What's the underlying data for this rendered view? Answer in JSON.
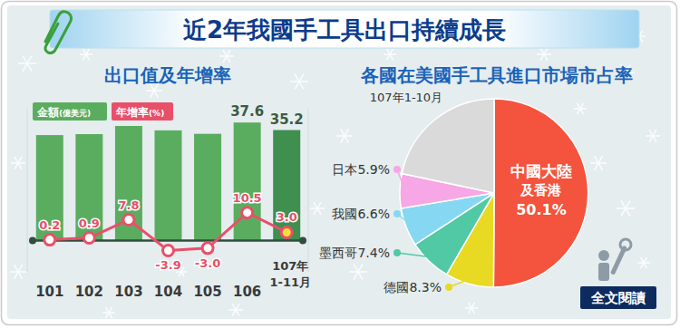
{
  "header": {
    "title": "近2年我國手工具出口持續成長"
  },
  "chart_data": [
    {
      "type": "bar",
      "title": "出口值及年增率",
      "categories": [
        "101",
        "102",
        "103",
        "104",
        "105",
        "106",
        "107年\n1-11月"
      ],
      "series": [
        {
          "name": "金額(億美元)",
          "type": "bar",
          "color": "#5aad5e",
          "colors": [
            "#5aad5e",
            "#5aad5e",
            "#5aad5e",
            "#5aad5e",
            "#5aad5e",
            "#5aad5e",
            "#3f8f4f"
          ],
          "values": [
            33.6,
            33.9,
            36.5,
            35.1,
            34.0,
            37.6,
            35.2
          ],
          "value_labels": [
            null,
            null,
            null,
            null,
            null,
            "37.6",
            "35.2"
          ]
        },
        {
          "name": "年增率(%)",
          "type": "line",
          "axis": "y2",
          "color": "#e8506a",
          "marker": "circle",
          "colors": [
            "#ffffff",
            "#ffffff",
            "#ffffff",
            "#ffffff",
            "#ffffff",
            "#ffffff",
            "#f5e03a"
          ],
          "values": [
            0.2,
            0.9,
            7.8,
            -3.9,
            -3.0,
            10.5,
            3.0
          ],
          "value_labels": [
            "0.2",
            "0.9",
            "7.8",
            "-3.9",
            "-3.0",
            "10.5",
            "3.0"
          ]
        }
      ],
      "ylim": [
        -10,
        42
      ],
      "y2lim": [
        -12,
        50
      ],
      "data_labels": true,
      "tick_labels": "x",
      "legend": "top-left"
    },
    {
      "type": "pie",
      "title": "各國在美國手工具進口市場市占率",
      "subtitle": "107年1-10月",
      "categories": [
        "中國大陸\n及香港",
        "德國",
        "墨西哥",
        "我國",
        "日本",
        null
      ],
      "values": [
        50.1,
        8.3,
        7.4,
        6.6,
        5.9,
        21.7
      ],
      "value_labels": [
        "50.1%",
        "8.3%",
        "7.4%",
        "6.6%",
        "5.9%",
        null
      ],
      "colors": [
        "#f4533d",
        "#e8d923",
        "#52c9a5",
        "#86d8f2",
        "#f7a6e6",
        "#dadada"
      ],
      "data_labels": true
    }
  ],
  "button": {
    "label": "全文閱讀"
  }
}
